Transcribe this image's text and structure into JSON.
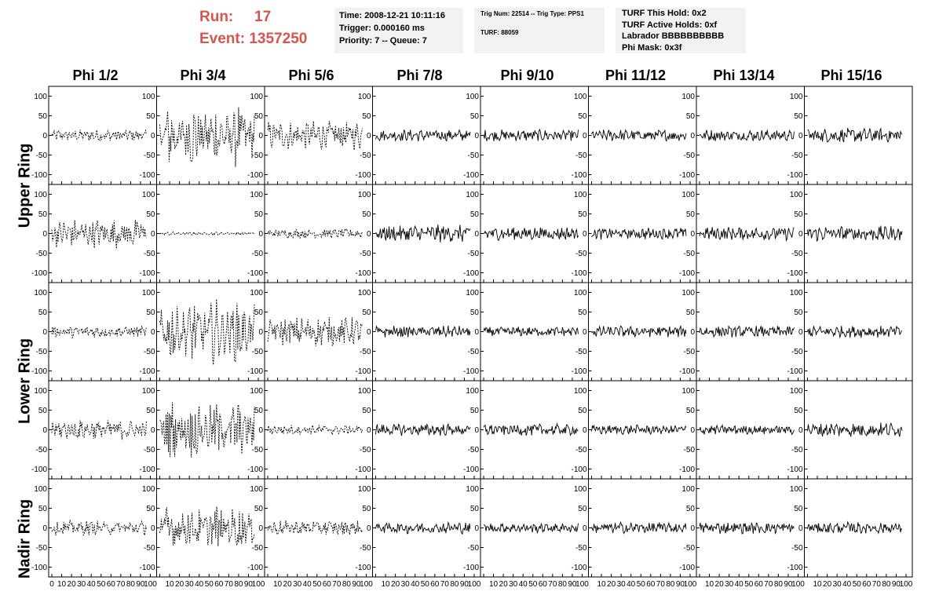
{
  "run_info": {
    "run_label": "Run:",
    "run_value": "17",
    "event_label": "Event:",
    "event_value": "1357250"
  },
  "trigger_box": {
    "time": "Time: 2008-12-21 10:11:16",
    "trigger": "Trigger: 0.000160 ms",
    "priority": "Priority: 7 -- Queue: 7"
  },
  "turf_box": {
    "trig": "Trig Num: 22514 -- Trig Type: PPS1",
    "turf": "TURF: 88059"
  },
  "holds_box": {
    "this_hold": "TURF This Hold: 0x2",
    "active_holds": "TURF Active Holds: 0xf",
    "labrador": "Labrador BBBBBBBBBB",
    "phi_mask": "Phi Mask: 0x3f"
  },
  "colors": {
    "title_red": "#d9534f",
    "box_bg": "#f2f2f2",
    "trace": "#000000"
  },
  "column_headers": [
    "Phi 1/2",
    "Phi 3/4",
    "Phi 5/6",
    "Phi 7/8",
    "Phi 9/10",
    "Phi 11/12",
    "Phi 13/14",
    "Phi 15/16"
  ],
  "row_headers": {
    "upper": "Upper Ring",
    "lower": "Lower Ring",
    "nadir": "Nadir Ring"
  },
  "chart_data": {
    "type": "line",
    "description_of_grid": "5 rows x 8 columns of waveform panels",
    "ylim": [
      -125,
      125
    ],
    "y_ticks": [
      "100",
      "50",
      "0",
      "-50",
      "-100"
    ],
    "xlim": [
      0,
      100
    ],
    "x_tick_values": [
      0,
      10,
      20,
      30,
      40,
      50,
      60,
      70,
      80,
      90,
      100
    ],
    "x_tick_labels_first": [
      "0",
      "10",
      "20",
      "30",
      "40",
      "50",
      "60",
      "70",
      "80",
      "90",
      "100"
    ],
    "x_tick_labels_other": [
      "10",
      "20",
      "30",
      "40",
      "50",
      "60",
      "70",
      "80",
      "90",
      "100"
    ],
    "panel_amplitudes": [
      [
        12,
        55,
        30,
        12,
        12,
        12,
        12,
        15
      ],
      [
        30,
        3,
        10,
        18,
        14,
        12,
        14,
        16
      ],
      [
        12,
        55,
        30,
        12,
        10,
        12,
        12,
        12
      ],
      [
        20,
        50,
        10,
        12,
        12,
        10,
        10,
        15
      ],
      [
        15,
        40,
        15,
        12,
        10,
        12,
        12,
        12
      ]
    ],
    "panel_dashed": [
      [
        true,
        true,
        true,
        false,
        false,
        false,
        false,
        false
      ],
      [
        true,
        true,
        true,
        false,
        false,
        false,
        false,
        false
      ],
      [
        true,
        true,
        true,
        false,
        false,
        false,
        false,
        false
      ],
      [
        true,
        true,
        true,
        false,
        false,
        false,
        false,
        false
      ],
      [
        true,
        true,
        true,
        false,
        false,
        false,
        false,
        false
      ]
    ]
  }
}
